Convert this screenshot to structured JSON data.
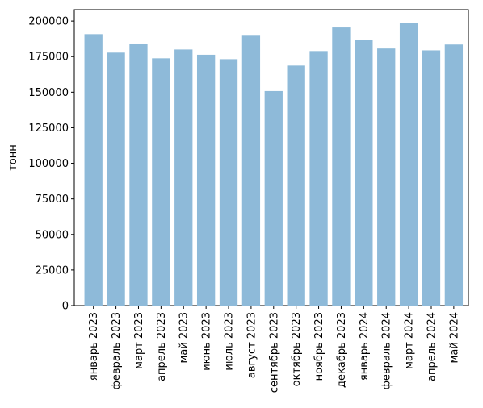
{
  "chart_data": {
    "type": "bar",
    "title": "",
    "xlabel": "",
    "ylabel": "тонн",
    "ylim": [
      0,
      208000
    ],
    "yticks": [
      0,
      25000,
      50000,
      75000,
      100000,
      125000,
      150000,
      175000,
      200000
    ],
    "ytick_labels": [
      "0",
      "25000",
      "50000",
      "75000",
      "100000",
      "125000",
      "150000",
      "175000",
      "200000"
    ],
    "grid": false,
    "legend": "none",
    "bar_color": "#8ebad9",
    "categories": [
      "январь 2023",
      "февраль 2023",
      "март 2023",
      "апрель 2023",
      "май 2023",
      "июнь 2023",
      "июль 2023",
      "август 2023",
      "сентябрь 2023",
      "октябрь 2023",
      "ноябрь 2023",
      "декабрь 2023",
      "январь 2024",
      "февраль 2024",
      "март 2024",
      "апрель 2024",
      "май 2024"
    ],
    "values": [
      190800,
      177800,
      184200,
      173800,
      180000,
      176300,
      173200,
      189700,
      150800,
      168700,
      178900,
      195500,
      186900,
      180700,
      198800,
      179400,
      183500
    ]
  }
}
